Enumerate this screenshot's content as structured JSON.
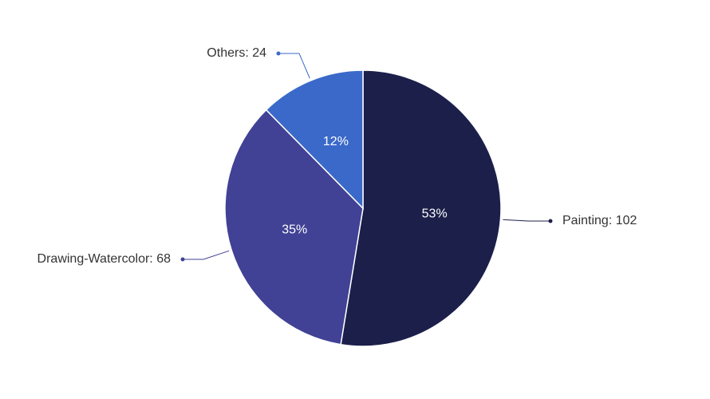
{
  "chart_data": {
    "type": "pie",
    "values": [
      102,
      68,
      24
    ],
    "value_labels": [
      "Painting: 102",
      "Drawing-Watercolor: 68",
      "Others: 24"
    ],
    "percent_values": [
      53,
      35,
      12
    ],
    "percent_labels": [
      "53%",
      "35%",
      "12%"
    ],
    "colors": [
      "#1c1f4a",
      "#414196",
      "#3a69c9"
    ]
  }
}
